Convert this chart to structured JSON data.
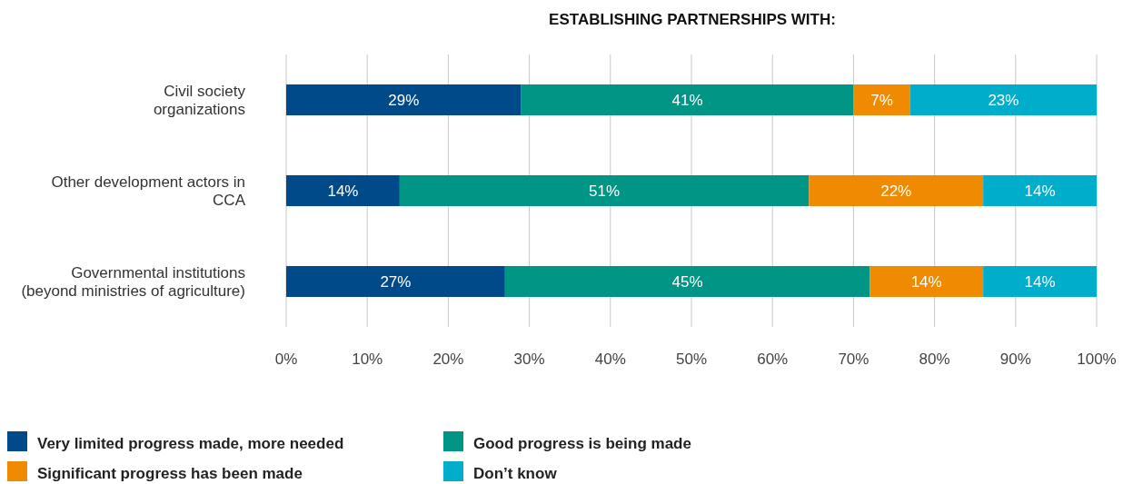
{
  "chart_data": {
    "type": "bar",
    "orientation": "horizontal",
    "stacked": true,
    "title": "ESTABLISHING PARTNERSHIPS WITH:",
    "categories": [
      "Civil society\norganizations",
      "Other development actors in\nCCA",
      "Governmental institutions\n(beyond ministries of agriculture)"
    ],
    "series": [
      {
        "name": "Very limited progress made, more needed",
        "color": "#004a8a",
        "values": [
          29,
          14,
          27
        ],
        "value_labels": [
          "29%",
          "14%",
          "27%"
        ]
      },
      {
        "name": "Good progress is being made",
        "color": "#009585",
        "values": [
          41,
          50.5,
          45
        ],
        "value_labels": [
          "41%",
          "51%",
          "45%"
        ]
      },
      {
        "name": "Significant progress has been made",
        "color": "#f08a00",
        "values": [
          7,
          21.5,
          14
        ],
        "value_labels": [
          "7%",
          "22%",
          "14%"
        ]
      },
      {
        "name": "Don’t know",
        "color": "#00aecb",
        "values": [
          23,
          14,
          14
        ],
        "value_labels": [
          "23%",
          "14%",
          "14%"
        ]
      }
    ],
    "xlim": [
      0,
      100
    ],
    "xticks": [
      {
        "value": 0,
        "label": "0%"
      },
      {
        "value": 10,
        "label": "10%"
      },
      {
        "value": 20,
        "label": "20%"
      },
      {
        "value": 30,
        "label": "30%"
      },
      {
        "value": 40,
        "label": "40%"
      },
      {
        "value": 50,
        "label": "50%"
      },
      {
        "value": 60,
        "label": "60%"
      },
      {
        "value": 70,
        "label": "70%"
      },
      {
        "value": 80,
        "label": "80%"
      },
      {
        "value": 90,
        "label": "90%"
      },
      {
        "value": 100,
        "label": "100%"
      }
    ],
    "grid": "x",
    "legend": "bottom"
  }
}
